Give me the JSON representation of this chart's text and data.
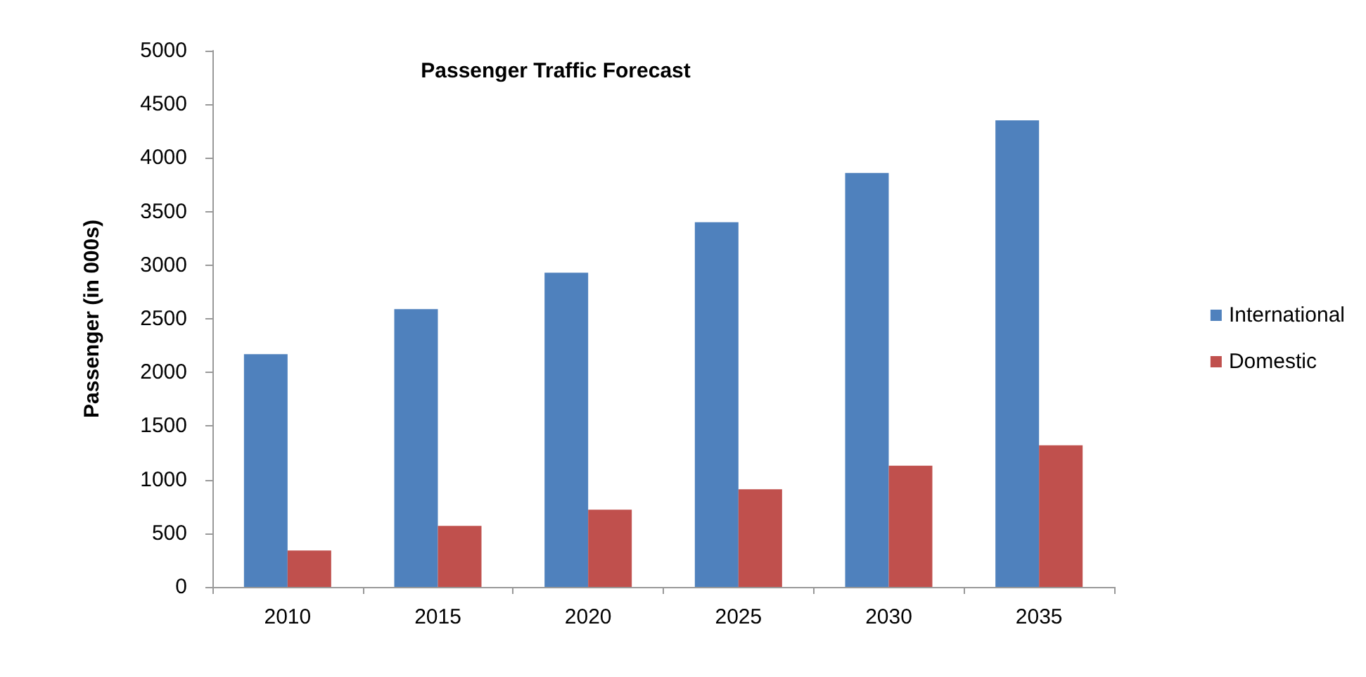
{
  "chart_data": {
    "type": "bar",
    "title": "Passenger Traffic Forecast",
    "ylabel": "Passenger (in 000s)",
    "categories": [
      "2010",
      "2015",
      "2020",
      "2025",
      "2030",
      "2035"
    ],
    "series": [
      {
        "name": "International",
        "color": "#4f81bd",
        "values": [
          2170,
          2590,
          2930,
          3400,
          3860,
          4350
        ]
      },
      {
        "name": "Domestic",
        "color": "#c0504d",
        "values": [
          340,
          570,
          720,
          910,
          1130,
          1320
        ]
      }
    ],
    "ylim": [
      0,
      5000
    ],
    "yticks": [
      0,
      500,
      1000,
      1500,
      2000,
      2500,
      3000,
      3500,
      4000,
      4500,
      5000
    ],
    "grid": false,
    "legend": "right"
  }
}
